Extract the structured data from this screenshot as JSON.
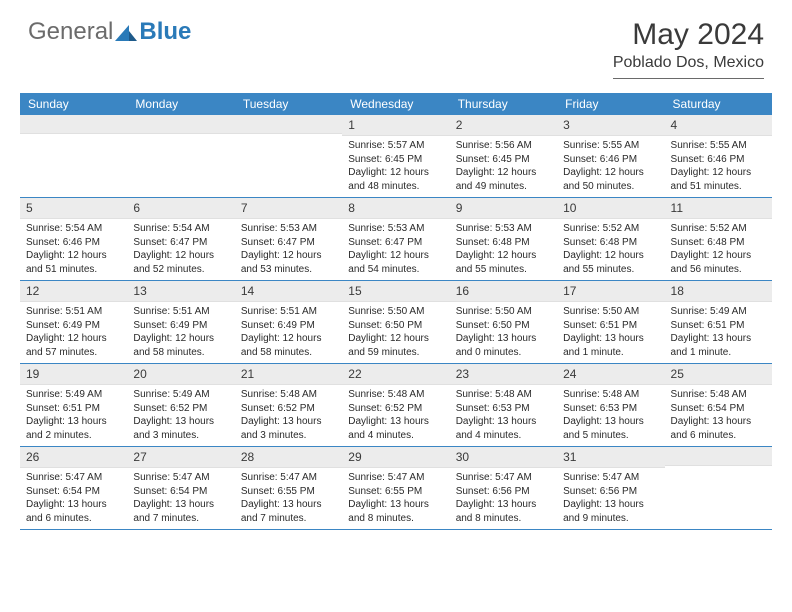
{
  "logo": {
    "text1": "General",
    "text2": "Blue"
  },
  "title": "May 2024",
  "location": "Poblado Dos, Mexico",
  "colors": {
    "header_bg": "#3b86c4",
    "header_text": "#ffffff",
    "daynum_bg": "#ececec",
    "text": "#2a2a2a",
    "border": "#3b86c4"
  },
  "day_names": [
    "Sunday",
    "Monday",
    "Tuesday",
    "Wednesday",
    "Thursday",
    "Friday",
    "Saturday"
  ],
  "weeks": [
    [
      {
        "n": "",
        "sr": "",
        "ss": "",
        "dl": ""
      },
      {
        "n": "",
        "sr": "",
        "ss": "",
        "dl": ""
      },
      {
        "n": "",
        "sr": "",
        "ss": "",
        "dl": ""
      },
      {
        "n": "1",
        "sr": "5:57 AM",
        "ss": "6:45 PM",
        "dl": "12 hours and 48 minutes."
      },
      {
        "n": "2",
        "sr": "5:56 AM",
        "ss": "6:45 PM",
        "dl": "12 hours and 49 minutes."
      },
      {
        "n": "3",
        "sr": "5:55 AM",
        "ss": "6:46 PM",
        "dl": "12 hours and 50 minutes."
      },
      {
        "n": "4",
        "sr": "5:55 AM",
        "ss": "6:46 PM",
        "dl": "12 hours and 51 minutes."
      }
    ],
    [
      {
        "n": "5",
        "sr": "5:54 AM",
        "ss": "6:46 PM",
        "dl": "12 hours and 51 minutes."
      },
      {
        "n": "6",
        "sr": "5:54 AM",
        "ss": "6:47 PM",
        "dl": "12 hours and 52 minutes."
      },
      {
        "n": "7",
        "sr": "5:53 AM",
        "ss": "6:47 PM",
        "dl": "12 hours and 53 minutes."
      },
      {
        "n": "8",
        "sr": "5:53 AM",
        "ss": "6:47 PM",
        "dl": "12 hours and 54 minutes."
      },
      {
        "n": "9",
        "sr": "5:53 AM",
        "ss": "6:48 PM",
        "dl": "12 hours and 55 minutes."
      },
      {
        "n": "10",
        "sr": "5:52 AM",
        "ss": "6:48 PM",
        "dl": "12 hours and 55 minutes."
      },
      {
        "n": "11",
        "sr": "5:52 AM",
        "ss": "6:48 PM",
        "dl": "12 hours and 56 minutes."
      }
    ],
    [
      {
        "n": "12",
        "sr": "5:51 AM",
        "ss": "6:49 PM",
        "dl": "12 hours and 57 minutes."
      },
      {
        "n": "13",
        "sr": "5:51 AM",
        "ss": "6:49 PM",
        "dl": "12 hours and 58 minutes."
      },
      {
        "n": "14",
        "sr": "5:51 AM",
        "ss": "6:49 PM",
        "dl": "12 hours and 58 minutes."
      },
      {
        "n": "15",
        "sr": "5:50 AM",
        "ss": "6:50 PM",
        "dl": "12 hours and 59 minutes."
      },
      {
        "n": "16",
        "sr": "5:50 AM",
        "ss": "6:50 PM",
        "dl": "13 hours and 0 minutes."
      },
      {
        "n": "17",
        "sr": "5:50 AM",
        "ss": "6:51 PM",
        "dl": "13 hours and 1 minute."
      },
      {
        "n": "18",
        "sr": "5:49 AM",
        "ss": "6:51 PM",
        "dl": "13 hours and 1 minute."
      }
    ],
    [
      {
        "n": "19",
        "sr": "5:49 AM",
        "ss": "6:51 PM",
        "dl": "13 hours and 2 minutes."
      },
      {
        "n": "20",
        "sr": "5:49 AM",
        "ss": "6:52 PM",
        "dl": "13 hours and 3 minutes."
      },
      {
        "n": "21",
        "sr": "5:48 AM",
        "ss": "6:52 PM",
        "dl": "13 hours and 3 minutes."
      },
      {
        "n": "22",
        "sr": "5:48 AM",
        "ss": "6:52 PM",
        "dl": "13 hours and 4 minutes."
      },
      {
        "n": "23",
        "sr": "5:48 AM",
        "ss": "6:53 PM",
        "dl": "13 hours and 4 minutes."
      },
      {
        "n": "24",
        "sr": "5:48 AM",
        "ss": "6:53 PM",
        "dl": "13 hours and 5 minutes."
      },
      {
        "n": "25",
        "sr": "5:48 AM",
        "ss": "6:54 PM",
        "dl": "13 hours and 6 minutes."
      }
    ],
    [
      {
        "n": "26",
        "sr": "5:47 AM",
        "ss": "6:54 PM",
        "dl": "13 hours and 6 minutes."
      },
      {
        "n": "27",
        "sr": "5:47 AM",
        "ss": "6:54 PM",
        "dl": "13 hours and 7 minutes."
      },
      {
        "n": "28",
        "sr": "5:47 AM",
        "ss": "6:55 PM",
        "dl": "13 hours and 7 minutes."
      },
      {
        "n": "29",
        "sr": "5:47 AM",
        "ss": "6:55 PM",
        "dl": "13 hours and 8 minutes."
      },
      {
        "n": "30",
        "sr": "5:47 AM",
        "ss": "6:56 PM",
        "dl": "13 hours and 8 minutes."
      },
      {
        "n": "31",
        "sr": "5:47 AM",
        "ss": "6:56 PM",
        "dl": "13 hours and 9 minutes."
      },
      {
        "n": "",
        "sr": "",
        "ss": "",
        "dl": ""
      }
    ]
  ],
  "labels": {
    "sunrise": "Sunrise:",
    "sunset": "Sunset:",
    "daylight": "Daylight:"
  }
}
